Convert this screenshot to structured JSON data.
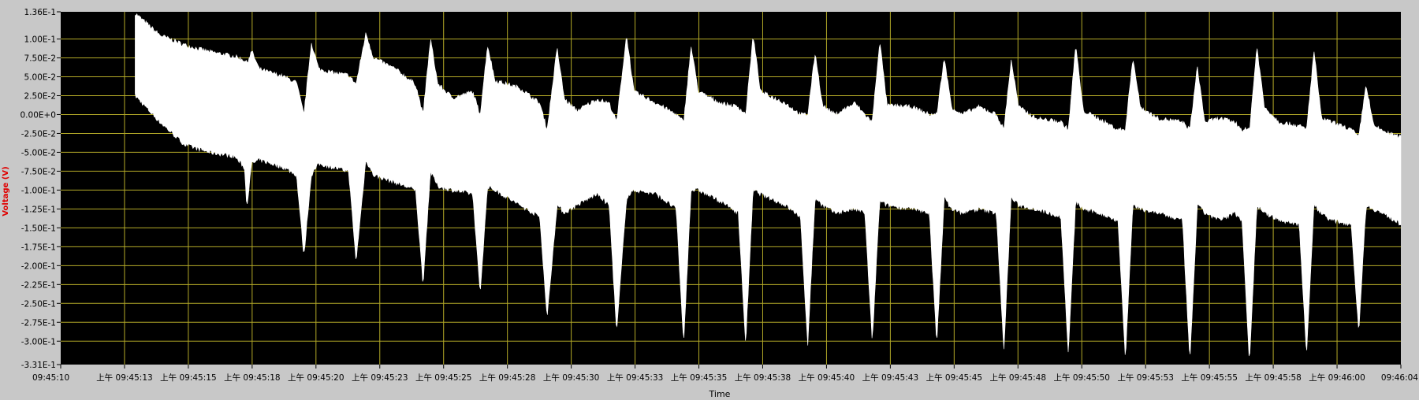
{
  "chart_data": {
    "type": "line",
    "title": "",
    "xlabel": "Time",
    "ylabel": "Voltage (V)",
    "xlim": [
      "09:45:10",
      "09:46:04"
    ],
    "ylim": [
      -0.331,
      0.136
    ],
    "yticks": [
      0.136,
      0.1,
      0.075,
      0.05,
      0.025,
      0.0,
      -0.025,
      -0.05,
      -0.075,
      -0.1,
      -0.125,
      -0.15,
      -0.175,
      -0.2,
      -0.225,
      -0.25,
      -0.275,
      -0.3,
      -0.331
    ],
    "ytick_labels": [
      "1.36E-1",
      "1.00E-1",
      "7.50E-2",
      "5.00E-2",
      "2.50E-2",
      "0.00E+0",
      "-2.50E-2",
      "-5.00E-2",
      "-7.50E-2",
      "-1.00E-1",
      "-1.25E-1",
      "-1.50E-1",
      "-1.75E-1",
      "-2.00E-1",
      "-2.25E-1",
      "-2.50E-1",
      "-2.75E-1",
      "-3.00E-1",
      "-3.31E-1"
    ],
    "xtick_labels": [
      "09:45:10",
      "上午 09:45:13",
      "上午 09:45:15",
      "上午 09:45:18",
      "上午 09:45:20",
      "上午 09:45:23",
      "上午 09:45:25",
      "上午 09:45:28",
      "上午 09:45:30",
      "上午 09:45:33",
      "上午 09:45:35",
      "上午 09:45:38",
      "上午 09:45:40",
      "上午 09:45:43",
      "上午 09:45:45",
      "上午 09:45:48",
      "上午 09:45:50",
      "上午 09:45:53",
      "上午 09:45:55",
      "上午 09:45:58",
      "上午 09:46:00",
      "09:46:04"
    ],
    "grid": true,
    "legend": "none",
    "colors": {
      "plot_bg": "#000000",
      "grid": "#b4aa28",
      "trace": "#ffffff",
      "frame": "#c8c8c8",
      "ylabel": "#e00000"
    },
    "series": [
      {
        "signal_start_s": 3.0,
        "signal_end_s": 54.0,
        "envelope_upper": [
          [
            3.0,
            0.134
          ],
          [
            4.0,
            0.105
          ],
          [
            5.0,
            0.092
          ],
          [
            6.0,
            0.083
          ],
          [
            7.0,
            0.077
          ],
          [
            7.4,
            0.072
          ],
          [
            7.5,
            0.068
          ],
          [
            7.7,
            0.084
          ],
          [
            8.0,
            0.06
          ],
          [
            9.0,
            0.05
          ],
          [
            9.5,
            0.042
          ],
          [
            9.8,
            0.0
          ],
          [
            10.1,
            0.095
          ],
          [
            10.4,
            0.06
          ],
          [
            11.0,
            0.055
          ],
          [
            11.6,
            0.052
          ],
          [
            11.9,
            0.04
          ],
          [
            12.3,
            0.108
          ],
          [
            12.6,
            0.075
          ],
          [
            13.5,
            0.06
          ],
          [
            14.3,
            0.04
          ],
          [
            14.6,
            0.0
          ],
          [
            14.9,
            0.1
          ],
          [
            15.2,
            0.04
          ],
          [
            15.8,
            0.022
          ],
          [
            16.6,
            0.03
          ],
          [
            16.9,
            0.0
          ],
          [
            17.2,
            0.092
          ],
          [
            17.5,
            0.045
          ],
          [
            18.5,
            0.035
          ],
          [
            19.3,
            0.015
          ],
          [
            19.6,
            -0.02
          ],
          [
            20.0,
            0.088
          ],
          [
            20.3,
            0.02
          ],
          [
            20.8,
            0.005
          ],
          [
            21.6,
            0.02
          ],
          [
            22.1,
            0.015
          ],
          [
            22.4,
            -0.01
          ],
          [
            22.8,
            0.105
          ],
          [
            23.1,
            0.03
          ],
          [
            24.0,
            0.015
          ],
          [
            24.8,
            0.0
          ],
          [
            25.1,
            -0.01
          ],
          [
            25.4,
            0.09
          ],
          [
            25.7,
            0.03
          ],
          [
            26.6,
            0.015
          ],
          [
            27.3,
            0.01
          ],
          [
            27.6,
            0.0
          ],
          [
            27.9,
            0.105
          ],
          [
            28.2,
            0.03
          ],
          [
            29.2,
            0.015
          ],
          [
            29.8,
            0.0
          ],
          [
            30.1,
            0.0
          ],
          [
            30.4,
            0.082
          ],
          [
            30.7,
            0.012
          ],
          [
            31.2,
            0.0
          ],
          [
            32.0,
            0.015
          ],
          [
            32.4,
            0.0
          ],
          [
            32.7,
            -0.01
          ],
          [
            33.0,
            0.098
          ],
          [
            33.3,
            0.012
          ],
          [
            34.3,
            0.01
          ],
          [
            35.0,
            0.0
          ],
          [
            35.3,
            0.0
          ],
          [
            35.6,
            0.075
          ],
          [
            35.9,
            0.01
          ],
          [
            36.3,
            0.0
          ],
          [
            37.0,
            0.01
          ],
          [
            37.7,
            0.0
          ],
          [
            38.0,
            -0.02
          ],
          [
            38.3,
            0.072
          ],
          [
            38.6,
            0.01
          ],
          [
            39.3,
            -0.005
          ],
          [
            40.3,
            -0.01
          ],
          [
            40.6,
            -0.02
          ],
          [
            40.9,
            0.092
          ],
          [
            41.2,
            0.005
          ],
          [
            41.8,
            -0.005
          ],
          [
            42.6,
            -0.02
          ],
          [
            42.9,
            -0.02
          ],
          [
            43.2,
            0.076
          ],
          [
            43.5,
            0.01
          ],
          [
            44.2,
            -0.005
          ],
          [
            45.2,
            -0.01
          ],
          [
            45.5,
            -0.02
          ],
          [
            45.8,
            0.063
          ],
          [
            46.1,
            -0.01
          ],
          [
            46.7,
            -0.005
          ],
          [
            47.3,
            -0.01
          ],
          [
            47.6,
            -0.02
          ],
          [
            47.9,
            -0.02
          ],
          [
            48.2,
            0.09
          ],
          [
            48.5,
            0.01
          ],
          [
            49.1,
            -0.01
          ],
          [
            49.9,
            -0.015
          ],
          [
            50.2,
            -0.02
          ],
          [
            50.5,
            0.085
          ],
          [
            50.8,
            -0.005
          ],
          [
            51.2,
            -0.01
          ],
          [
            52.0,
            -0.02
          ],
          [
            52.3,
            -0.03
          ],
          [
            52.6,
            0.04
          ],
          [
            52.9,
            -0.015
          ],
          [
            53.5,
            -0.025
          ],
          [
            54.0,
            -0.03
          ]
        ],
        "envelope_lower": [
          [
            3.0,
            0.025
          ],
          [
            4.0,
            -0.01
          ],
          [
            5.0,
            -0.04
          ],
          [
            6.0,
            -0.05
          ],
          [
            7.0,
            -0.055
          ],
          [
            7.4,
            -0.07
          ],
          [
            7.5,
            -0.122
          ],
          [
            7.7,
            -0.065
          ],
          [
            8.0,
            -0.06
          ],
          [
            9.0,
            -0.07
          ],
          [
            9.5,
            -0.08
          ],
          [
            9.8,
            -0.188
          ],
          [
            10.1,
            -0.08
          ],
          [
            10.4,
            -0.065
          ],
          [
            11.0,
            -0.07
          ],
          [
            11.6,
            -0.075
          ],
          [
            11.9,
            -0.195
          ],
          [
            12.3,
            -0.06
          ],
          [
            12.6,
            -0.08
          ],
          [
            13.5,
            -0.09
          ],
          [
            14.3,
            -0.1
          ],
          [
            14.6,
            -0.225
          ],
          [
            14.9,
            -0.075
          ],
          [
            15.2,
            -0.095
          ],
          [
            15.8,
            -0.1
          ],
          [
            16.6,
            -0.105
          ],
          [
            16.9,
            -0.238
          ],
          [
            17.2,
            -0.095
          ],
          [
            17.5,
            -0.1
          ],
          [
            18.5,
            -0.12
          ],
          [
            19.3,
            -0.135
          ],
          [
            19.6,
            -0.27
          ],
          [
            20.0,
            -0.12
          ],
          [
            20.3,
            -0.13
          ],
          [
            20.8,
            -0.12
          ],
          [
            21.6,
            -0.105
          ],
          [
            22.1,
            -0.12
          ],
          [
            22.4,
            -0.29
          ],
          [
            22.8,
            -0.11
          ],
          [
            23.1,
            -0.1
          ],
          [
            24.0,
            -0.105
          ],
          [
            24.8,
            -0.125
          ],
          [
            25.1,
            -0.305
          ],
          [
            25.4,
            -0.1
          ],
          [
            25.7,
            -0.1
          ],
          [
            26.6,
            -0.115
          ],
          [
            27.3,
            -0.13
          ],
          [
            27.6,
            -0.305
          ],
          [
            27.9,
            -0.1
          ],
          [
            28.2,
            -0.105
          ],
          [
            29.2,
            -0.12
          ],
          [
            29.8,
            -0.135
          ],
          [
            30.1,
            -0.305
          ],
          [
            30.4,
            -0.11
          ],
          [
            30.7,
            -0.12
          ],
          [
            31.2,
            -0.13
          ],
          [
            32.0,
            -0.125
          ],
          [
            32.4,
            -0.13
          ],
          [
            32.7,
            -0.303
          ],
          [
            33.0,
            -0.115
          ],
          [
            33.3,
            -0.12
          ],
          [
            34.3,
            -0.125
          ],
          [
            35.0,
            -0.13
          ],
          [
            35.3,
            -0.305
          ],
          [
            35.6,
            -0.11
          ],
          [
            35.9,
            -0.125
          ],
          [
            36.3,
            -0.13
          ],
          [
            37.0,
            -0.125
          ],
          [
            37.7,
            -0.13
          ],
          [
            38.0,
            -0.315
          ],
          [
            38.3,
            -0.11
          ],
          [
            38.6,
            -0.12
          ],
          [
            39.3,
            -0.125
          ],
          [
            40.3,
            -0.135
          ],
          [
            40.6,
            -0.318
          ],
          [
            40.9,
            -0.115
          ],
          [
            41.2,
            -0.125
          ],
          [
            41.8,
            -0.13
          ],
          [
            42.6,
            -0.14
          ],
          [
            42.9,
            -0.325
          ],
          [
            43.2,
            -0.12
          ],
          [
            43.5,
            -0.125
          ],
          [
            44.2,
            -0.13
          ],
          [
            45.2,
            -0.14
          ],
          [
            45.5,
            -0.328
          ],
          [
            45.8,
            -0.12
          ],
          [
            46.1,
            -0.13
          ],
          [
            46.7,
            -0.14
          ],
          [
            47.3,
            -0.13
          ],
          [
            47.6,
            -0.14
          ],
          [
            47.9,
            -0.33
          ],
          [
            48.2,
            -0.12
          ],
          [
            48.5,
            -0.13
          ],
          [
            49.1,
            -0.14
          ],
          [
            49.9,
            -0.145
          ],
          [
            50.2,
            -0.318
          ],
          [
            50.5,
            -0.12
          ],
          [
            50.8,
            -0.13
          ],
          [
            51.2,
            -0.14
          ],
          [
            52.0,
            -0.145
          ],
          [
            52.3,
            -0.29
          ],
          [
            52.6,
            -0.12
          ],
          [
            52.9,
            -0.125
          ],
          [
            53.5,
            -0.135
          ],
          [
            54.0,
            -0.145
          ]
        ]
      }
    ]
  }
}
